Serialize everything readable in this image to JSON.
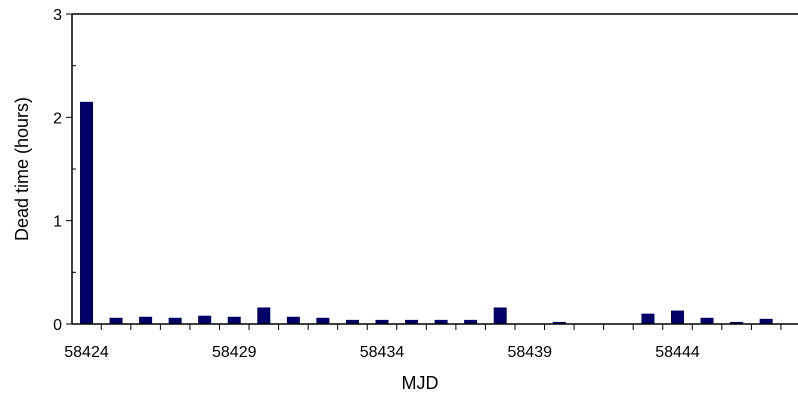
{
  "chart_data": {
    "type": "bar",
    "xlabel": "MJD",
    "ylabel": "Dead time (hours)",
    "ylim": [
      0,
      3
    ],
    "y_ticks": [
      0,
      1,
      2,
      3
    ],
    "x": [
      58424,
      58425,
      58426,
      58427,
      58428,
      58429,
      58430,
      58431,
      58432,
      58433,
      58434,
      58435,
      58436,
      58437,
      58438,
      58439,
      58440,
      58441,
      58442,
      58443,
      58444,
      58445,
      58446,
      58447
    ],
    "values": [
      2.15,
      0.06,
      0.07,
      0.06,
      0.08,
      0.07,
      0.16,
      0.07,
      0.06,
      0.04,
      0.04,
      0.04,
      0.04,
      0.04,
      0.16,
      0.0,
      0.02,
      0.0,
      0.0,
      0.1,
      0.13,
      0.06,
      0.02,
      0.05
    ],
    "x_tick_labels": [
      "58424",
      "58429",
      "58434",
      "58439",
      "58444"
    ],
    "bar_color": "#000066",
    "grid": false,
    "legend": "none"
  }
}
